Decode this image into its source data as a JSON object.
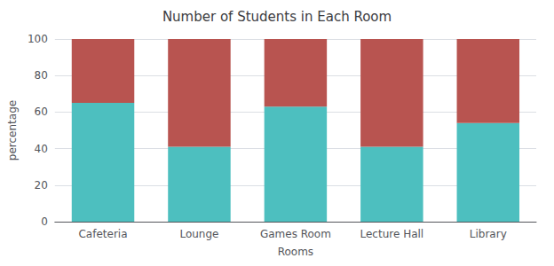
{
  "chart_data": {
    "type": "bar",
    "title": "Number of Students in Each Room",
    "categories": [
      "Cafeteria",
      "Lounge",
      "Games Room",
      "Lecture Hall",
      "Library"
    ],
    "series": [
      {
        "color": "#4DBFBF",
        "values": [
          65,
          41,
          63,
          41,
          54
        ]
      },
      {
        "color": "#B85450",
        "values": [
          35,
          59,
          37,
          59,
          46
        ]
      }
    ],
    "xlabel": "Rooms",
    "ylabel": "percentage",
    "ylim": [
      0,
      100
    ],
    "yticks": [
      0,
      20,
      40,
      60,
      80,
      100
    ],
    "grid": true,
    "stacked": true
  }
}
